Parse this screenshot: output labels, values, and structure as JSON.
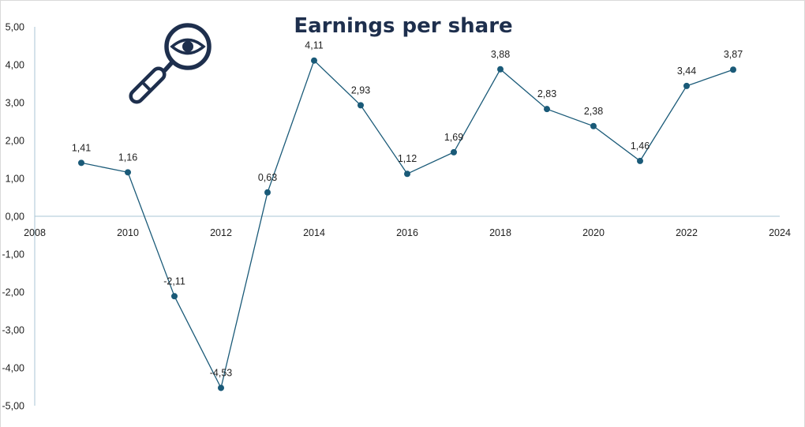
{
  "chart_data": {
    "type": "scatter",
    "title": "Earnings per share",
    "xlabel": "",
    "ylabel": "",
    "xlim": [
      2008,
      2024
    ],
    "ylim": [
      -5,
      5
    ],
    "x_ticks": [
      2008,
      2010,
      2012,
      2014,
      2016,
      2018,
      2020,
      2022,
      2024
    ],
    "x_tick_labels": [
      "2008",
      "2010",
      "2012",
      "2014",
      "2016",
      "2018",
      "2020",
      "2022",
      "2024"
    ],
    "y_ticks": [
      5,
      4,
      3,
      2,
      1,
      0,
      -1,
      -2,
      -3,
      -4,
      -5
    ],
    "y_tick_labels": [
      "5,00",
      "4,00",
      "3,00",
      "2,00",
      "1,00",
      "0,00",
      "-1,00",
      "-2,00",
      "-3,00",
      "-4,00",
      "-5,00"
    ],
    "grid": false,
    "legend": "none",
    "lines": true,
    "series": [
      {
        "color": "#1a5a78",
        "x": [
          2009,
          2010,
          2011,
          2012,
          2013,
          2014,
          2015,
          2016,
          2017,
          2018,
          2019,
          2020,
          2021,
          2022,
          2023
        ],
        "y": [
          1.41,
          1.16,
          -2.11,
          -4.53,
          0.63,
          4.11,
          2.93,
          1.12,
          1.69,
          3.88,
          2.83,
          2.38,
          1.46,
          3.44,
          3.87
        ],
        "labels": [
          "1,41",
          "1,16",
          "-2,11",
          "-4,53",
          "0,63",
          "4,11",
          "2,93",
          "1,12",
          "1,69",
          "3,88",
          "2,83",
          "2,38",
          "1,46",
          "3,44",
          "3,87"
        ]
      }
    ]
  },
  "decoration": {
    "icon": "magnifier-eye-icon",
    "icon_color": "#1e2f4d"
  },
  "colors": {
    "axis": "#a9c6d4",
    "series": "#1a5a78",
    "title": "#1e2f4d"
  }
}
